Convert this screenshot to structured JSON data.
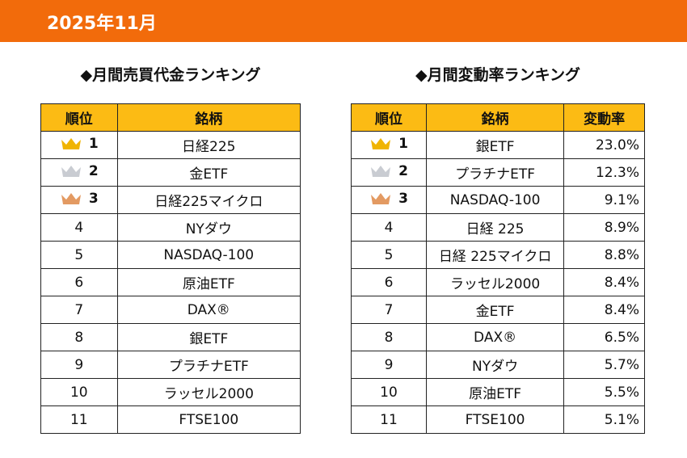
{
  "header": {
    "title": "2025年11月"
  },
  "tables": [
    {
      "title": "◆月間売買代金ランキング",
      "columns": [
        "順位",
        "銘柄"
      ],
      "rows": [
        [
          "1",
          "日経225"
        ],
        [
          "2",
          "金ETF"
        ],
        [
          "3",
          "日経225マイクロ"
        ],
        [
          "4",
          "NYダウ"
        ],
        [
          "5",
          "NASDAQ-100"
        ],
        [
          "6",
          "原油ETF"
        ],
        [
          "7",
          "DAX®"
        ],
        [
          "8",
          "銀ETF"
        ],
        [
          "9",
          "プラチナETF"
        ],
        [
          "10",
          "ラッセル2000"
        ],
        [
          "11",
          "FTSE100"
        ]
      ]
    },
    {
      "title": "◆月間変動率ランキング",
      "columns": [
        "順位",
        "銘柄",
        "変動率"
      ],
      "rows": [
        [
          "1",
          "銀ETF",
          "23.0%"
        ],
        [
          "2",
          "プラチナETF",
          "12.3%"
        ],
        [
          "3",
          "NASDAQ-100",
          "9.1%"
        ],
        [
          "4",
          "日経 225",
          "8.9%"
        ],
        [
          "5",
          "日経 225マイクロ",
          "8.8%"
        ],
        [
          "6",
          "ラッセル2000",
          "8.4%"
        ],
        [
          "7",
          "金ETF",
          "8.4%"
        ],
        [
          "8",
          "DAX®",
          "6.5%"
        ],
        [
          "9",
          "NYダウ",
          "5.7%"
        ],
        [
          "10",
          "原油ETF",
          "5.5%"
        ],
        [
          "11",
          "FTSE100",
          "5.1%"
        ]
      ]
    }
  ]
}
